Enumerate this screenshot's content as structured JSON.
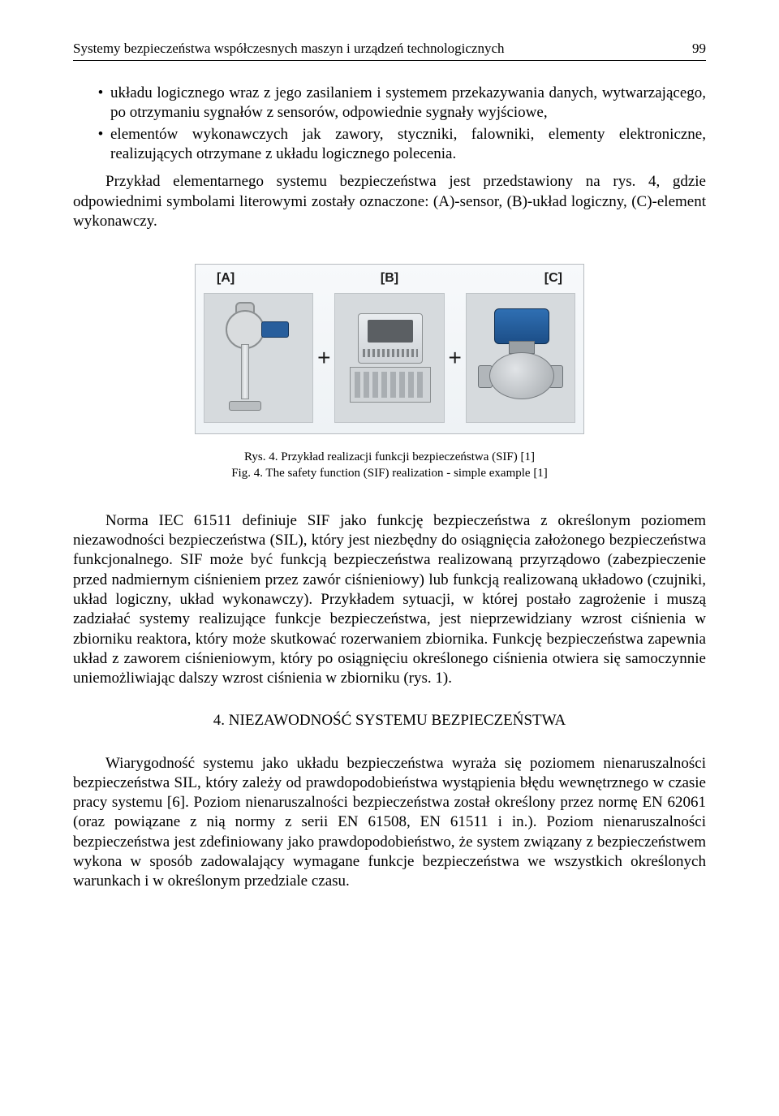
{
  "header": {
    "running_title": "Systemy bezpieczeństwa współczesnych maszyn i urządzeń technologicznych",
    "page_number": "99"
  },
  "bullets": {
    "b1": "układu logicznego wraz z jego zasilaniem i systemem przekazywania danych, wytwarzającego, po otrzymaniu sygnałów z sensorów, odpowiednie sygnały wyjściowe,",
    "b2": "elementów wykonawczych jak zawory, styczniki, falowniki, elementy elektroniczne, realizujących otrzymane z układu logicznego polecenia."
  },
  "para1": "Przykład elementarnego systemu bezpieczeństwa jest przedstawiony na rys. 4, gdzie odpowiednimi symbolami literowymi zostały oznaczone: (A)-sensor, (B)-układ logiczny, (C)-element wykonawczy.",
  "figure": {
    "label_a": "[A]",
    "label_b": "[B]",
    "label_c": "[C]",
    "plus": "+",
    "colors": {
      "panel_bg": "#d6dadd",
      "frame_bg_top": "#f7f9fb",
      "frame_bg_bottom": "#eef2f5",
      "blue": "#285e9c",
      "blue_dark": "#1c4e87",
      "metal": "#c8cbce"
    }
  },
  "caption": {
    "line1": "Rys. 4. Przykład realizacji funkcji bezpieczeństwa (SIF) [1]",
    "line2": "Fig. 4. The safety function (SIF) realization - simple example [1]"
  },
  "para2": "Norma IEC 61511 definiuje SIF jako funkcję bezpieczeństwa z określonym poziomem niezawodności bezpieczeństwa (SIL), który jest niezbędny do osiągnięcia założonego bezpieczeństwa funkcjonalnego. SIF może być funkcją bezpieczeństwa realizowaną przyrządowo (zabezpieczenie przed nadmiernym ciśnieniem przez zawór ciśnieniowy) lub funkcją realizowaną układowo (czujniki, układ logiczny, układ wykonawczy). Przykładem sytuacji, w której postało zagrożenie i muszą zadziałać systemy realizujące funkcje bezpieczeństwa, jest nieprzewidziany wzrost ciśnienia w zbiorniku reaktora, który może skutkować rozerwaniem zbiornika. Funkcję bezpieczeństwa zapewnia układ z zaworem ciśnieniowym, który po osiągnięciu określonego ciśnienia otwiera się samoczynnie uniemożliwiając dalszy wzrost ciśnienia w zbiorniku (rys. 1).",
  "section": {
    "heading": "4. NIEZAWODNOŚĆ SYSTEMU BEZPIECZEŃSTWA"
  },
  "para3": "Wiarygodność systemu jako układu bezpieczeństwa wyraża się poziomem nienaruszalności bezpieczeństwa SIL, który zależy od prawdopodobieństwa wystąpienia błędu wewnętrznego w czasie pracy systemu [6]. Poziom nienaruszalności bezpieczeństwa został określony przez normę EN 62061 (oraz powiązane z nią normy z serii EN 61508, EN 61511 i in.). Poziom nienaruszalności bezpieczeństwa jest zdefiniowany jako prawdopodobieństwo, że system związany z bezpieczeństwem wykona w sposób zadowalający wymagane funkcje bezpieczeństwa we wszystkich określonych warunkach i w określonym przedziale czasu."
}
